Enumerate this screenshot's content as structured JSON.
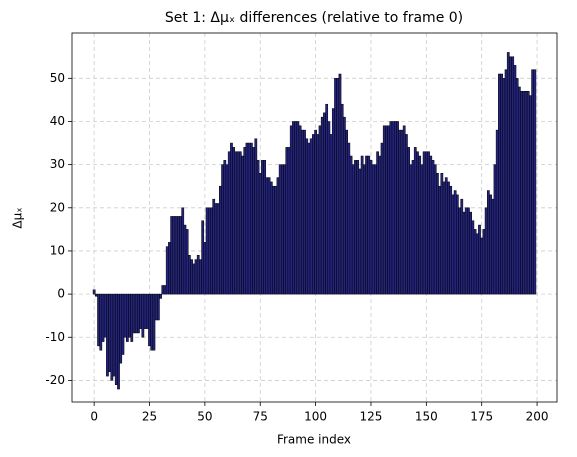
{
  "chart_data": {
    "type": "bar",
    "title": "Set 1: Δμₓ differences (relative to frame 0)",
    "x_label": "Frame index",
    "y_label": "Δμₓ",
    "x": [
      0,
      1,
      2,
      3,
      4,
      5,
      6,
      7,
      8,
      9,
      10,
      11,
      12,
      13,
      14,
      15,
      16,
      17,
      18,
      19,
      20,
      21,
      22,
      23,
      24,
      25,
      26,
      27,
      28,
      29,
      30,
      31,
      32,
      33,
      34,
      35,
      36,
      37,
      38,
      39,
      40,
      41,
      42,
      43,
      44,
      45,
      46,
      47,
      48,
      49,
      50,
      51,
      52,
      53,
      54,
      55,
      56,
      57,
      58,
      59,
      60,
      61,
      62,
      63,
      64,
      65,
      66,
      67,
      68,
      69,
      70,
      71,
      72,
      73,
      74,
      75,
      76,
      77,
      78,
      79,
      80,
      81,
      82,
      83,
      84,
      85,
      86,
      87,
      88,
      89,
      90,
      91,
      92,
      93,
      94,
      95,
      96,
      97,
      98,
      99,
      100,
      101,
      102,
      103,
      104,
      105,
      106,
      107,
      108,
      109,
      110,
      111,
      112,
      113,
      114,
      115,
      116,
      117,
      118,
      119,
      120,
      121,
      122,
      123,
      124,
      125,
      126,
      127,
      128,
      129,
      130,
      131,
      132,
      133,
      134,
      135,
      136,
      137,
      138,
      139,
      140,
      141,
      142,
      143,
      144,
      145,
      146,
      147,
      148,
      149,
      150,
      151,
      152,
      153,
      154,
      155,
      156,
      157,
      158,
      159,
      160,
      161,
      162,
      163,
      164,
      165,
      166,
      167,
      168,
      169,
      170,
      171,
      172,
      173,
      174,
      175,
      176,
      177,
      178,
      179,
      180,
      181,
      182,
      183,
      184,
      185,
      186,
      187,
      188,
      189,
      190,
      191,
      192,
      193,
      194,
      195,
      196,
      197,
      198,
      199
    ],
    "values": [
      1,
      -0.5,
      -12,
      -13,
      -11,
      -10,
      -19,
      -18,
      -20,
      -19,
      -21,
      -22,
      -16,
      -14,
      -10,
      -11,
      -10,
      -11,
      -9,
      -9,
      -9,
      -8,
      -10,
      -8,
      -8,
      -12,
      -13,
      -13,
      -6,
      -6,
      -1,
      2,
      2,
      11,
      12,
      18,
      18,
      18,
      18,
      18,
      20,
      16,
      15,
      9,
      8,
      7,
      8,
      9,
      8,
      17,
      12,
      20,
      20,
      20,
      22,
      21,
      21,
      25,
      30,
      31,
      30,
      33,
      35,
      34,
      33,
      33,
      33,
      32,
      34,
      35,
      35,
      35,
      34,
      36,
      31,
      28,
      31,
      31,
      27,
      27,
      26,
      25,
      25,
      27,
      30,
      30,
      30,
      34,
      34,
      39,
      40,
      40,
      40,
      39,
      38,
      38,
      36,
      35,
      36,
      37,
      38,
      37,
      39,
      41,
      42,
      44,
      40,
      37,
      43,
      50,
      50,
      51,
      44,
      41,
      38,
      35,
      32,
      30,
      31,
      31,
      29,
      32,
      30,
      32,
      32,
      31,
      30,
      30,
      33,
      32,
      35,
      39,
      39,
      39,
      40,
      40,
      40,
      40,
      38,
      38,
      39,
      37,
      34,
      30,
      31,
      34,
      33,
      32,
      30,
      33,
      33,
      33,
      32,
      31,
      30,
      28,
      25,
      28,
      26,
      27,
      26,
      25,
      23,
      24,
      23,
      20,
      22,
      19,
      20,
      20,
      19,
      17,
      15,
      14,
      16,
      13,
      15,
      20,
      24,
      23,
      22,
      30,
      38,
      51,
      51,
      50,
      52,
      56,
      55,
      55,
      53,
      50,
      48,
      47,
      47,
      47,
      47,
      46,
      52,
      52
    ],
    "color": "#24247d",
    "edgecolor": "#000000",
    "xlim": [
      -10,
      209
    ],
    "ylim": [
      -25,
      60.5
    ],
    "xticks": [
      0,
      25,
      50,
      75,
      100,
      125,
      150,
      175,
      200
    ],
    "yticks": [
      -20,
      -10,
      0,
      10,
      20,
      30,
      40,
      50
    ],
    "grid": true
  }
}
